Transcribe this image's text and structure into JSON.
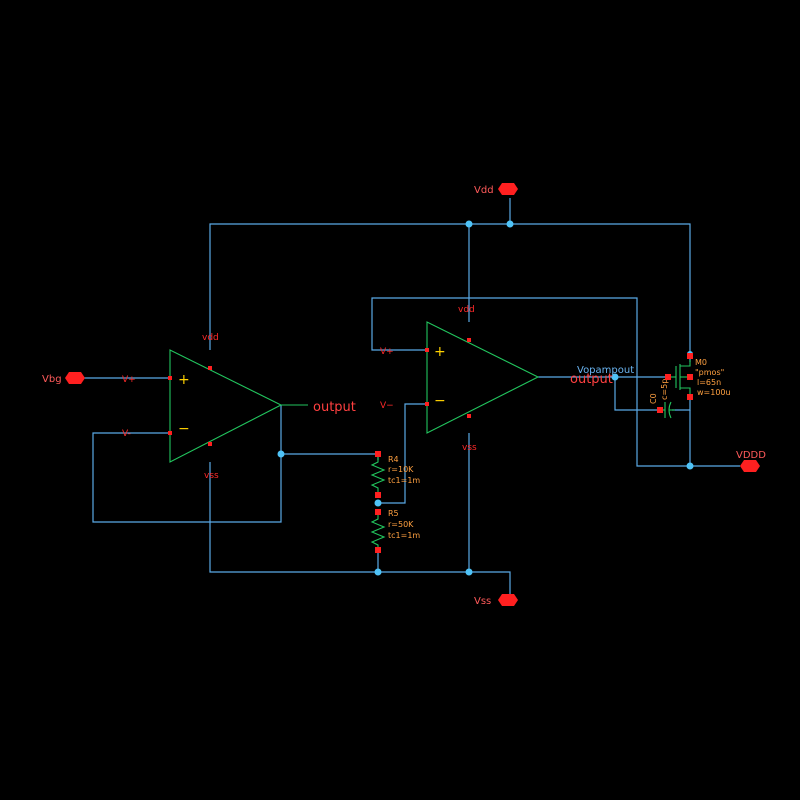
{
  "ports": {
    "vdd": "Vdd",
    "vss": "Vss",
    "vbg": "Vbg",
    "vddd": "VDDD"
  },
  "opamp1": {
    "vpos_pin": "V+",
    "vneg_pin": "V-",
    "plus": "+",
    "minus": "−",
    "vdd": "vdd",
    "vss": "vss",
    "out": "output"
  },
  "opamp2": {
    "vpos_pin": "V+",
    "vneg_pin": "V−",
    "plus": "+",
    "minus": "−",
    "vdd": "vdd",
    "vss": "vss",
    "out": "output"
  },
  "r4": {
    "name": "R4",
    "r": "r=10K",
    "tc": "tc1=1m"
  },
  "r5": {
    "name": "R5",
    "r": "r=50K",
    "tc": "tc1=1m"
  },
  "cap": {
    "name": "C0",
    "c": "c=5p"
  },
  "mos": {
    "name": "M0",
    "model": "\"pmos\"",
    "l": "l=65n",
    "w": "w=100u"
  },
  "net_vopampout": "Vopampout",
  "colors": {
    "wire": "#5aa9e6",
    "component": "#22c55e",
    "pin": "#ff2020",
    "label": "#ff2a2a",
    "param": "#ffa040",
    "junction": "#4fc3f7"
  }
}
